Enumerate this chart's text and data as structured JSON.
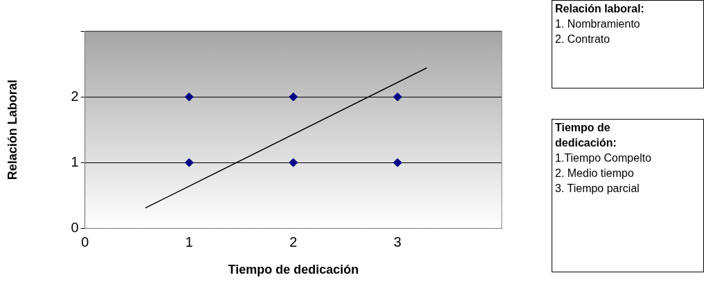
{
  "chart_data": {
    "type": "scatter",
    "xlabel": "Tiempo de dedicación",
    "ylabel": "Relación Laboral",
    "xlim": [
      0,
      4
    ],
    "xticks": [
      0,
      1,
      2,
      3
    ],
    "ylim": [
      0,
      3
    ],
    "yticks": [
      0,
      1,
      2,
      {
        "value": 3,
        "label": null
      }
    ],
    "series": [
      {
        "color": "#000080",
        "x": [
          1,
          1,
          2,
          2,
          3,
          3
        ],
        "values": [
          2,
          1,
          2,
          1,
          2,
          1
        ],
        "marker": "diamond"
      },
      {
        "type": "line",
        "color": "#000000",
        "x": [
          0.58,
          3.28
        ],
        "values": [
          0.31,
          2.44
        ],
        "marker": "none"
      }
    ],
    "grid": "y",
    "legend": false,
    "annotations": [
      "Relación laboral:\n1. Nombramiento\n2. Contrato",
      "Tiempo de dedicación:\n1.Tiempo Compelto\n2. Medio tiempo\n3. Tiempo parcial"
    ]
  }
}
